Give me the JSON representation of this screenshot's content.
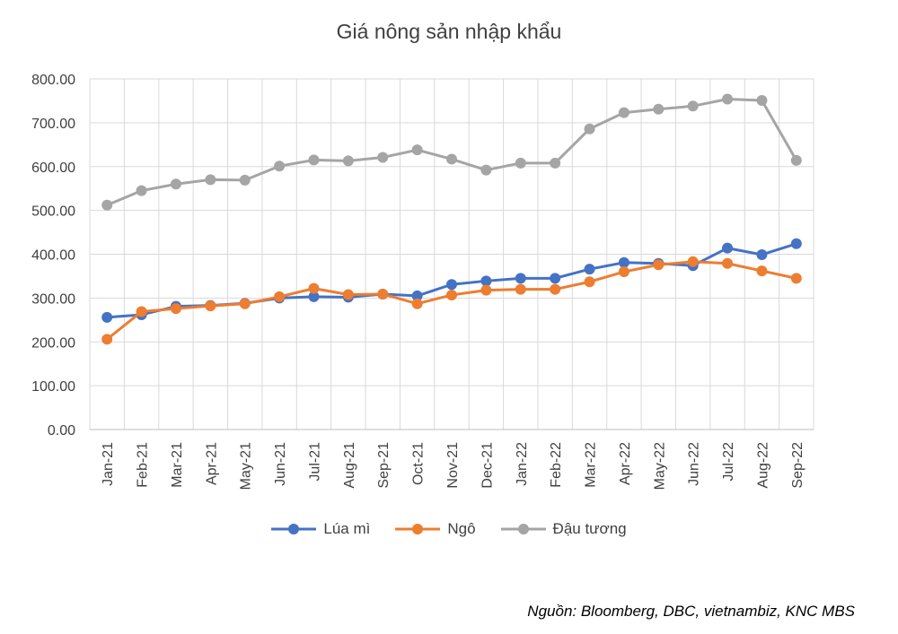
{
  "chart_data": {
    "type": "line",
    "title": "Giá nông sản nhập khẩu",
    "categories": [
      "Jan-21",
      "Feb-21",
      "Mar-21",
      "Apr-21",
      "May-21",
      "Jun-21",
      "Jul-21",
      "Aug-21",
      "Sep-21",
      "Oct-21",
      "Nov-21",
      "Dec-21",
      "Jan-22",
      "Feb-22",
      "Mar-22",
      "Apr-22",
      "May-22",
      "Jun-22",
      "Jul-22",
      "Aug-22",
      "Sep-22"
    ],
    "yticks": [
      "0.00",
      "100.00",
      "200.00",
      "300.00",
      "400.00",
      "500.00",
      "600.00",
      "700.00",
      "800.00"
    ],
    "ylim": [
      0,
      800
    ],
    "grid": true,
    "legend_position": "bottom",
    "series": [
      {
        "name": "Lúa mì",
        "color": "#4472C4",
        "values": [
          256,
          262,
          281,
          283,
          288,
          300,
          303,
          302,
          309,
          305,
          331,
          339,
          345,
          345,
          366,
          381,
          379,
          374,
          414,
          399,
          424
        ]
      },
      {
        "name": "Ngô",
        "color": "#ED7D31",
        "values": [
          206,
          269,
          276,
          282,
          287,
          303,
          322,
          308,
          309,
          287,
          307,
          318,
          320,
          320,
          337,
          360,
          376,
          383,
          379,
          362,
          345
        ]
      },
      {
        "name": "Đậu tương",
        "color": "#A5A5A5",
        "values": [
          512,
          545,
          560,
          570,
          569,
          601,
          615,
          613,
          621,
          638,
          617,
          592,
          608,
          608,
          686,
          723,
          731,
          738,
          754,
          751,
          614
        ]
      }
    ]
  },
  "source_text": "Nguồn: Bloomberg, DBC, vietnambiz, KNC MBS"
}
